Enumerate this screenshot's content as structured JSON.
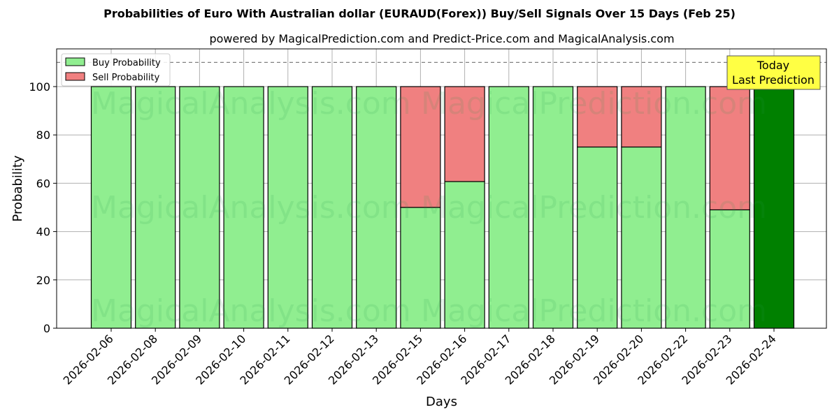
{
  "chart_data": {
    "type": "bar",
    "stacked": true,
    "title": "Probabilities of Euro With Australian dollar (EURAUD(Forex)) Buy/Sell Signals Over 15 Days (Feb 25)",
    "subtitle": "powered by MagicalPrediction.com and Predict-Price.com and MagicalAnalysis.com",
    "xlabel": "Days",
    "ylabel": "Probability",
    "ylim": [
      0,
      115
    ],
    "yticks": [
      0,
      20,
      40,
      60,
      80,
      100
    ],
    "grid": true,
    "reference_line": {
      "y": 110,
      "style": "dashed"
    },
    "categories": [
      "2026-02-06",
      "2026-02-08",
      "2026-02-09",
      "2026-02-10",
      "2026-02-11",
      "2026-02-12",
      "2026-02-13",
      "2026-02-15",
      "2026-02-16",
      "2026-02-17",
      "2026-02-18",
      "2026-02-19",
      "2026-02-20",
      "2026-02-22",
      "2026-02-23",
      "2026-02-24"
    ],
    "series": [
      {
        "name": "Buy Probability",
        "color": "#90ee90",
        "values": [
          100,
          100,
          100,
          100,
          100,
          100,
          100,
          50,
          60.7,
          100,
          100,
          75,
          75,
          100,
          49,
          100
        ]
      },
      {
        "name": "Sell Probability",
        "color": "#f08080",
        "values": [
          0,
          0,
          0,
          0,
          0,
          0,
          0,
          50,
          39.3,
          0,
          0,
          25,
          25,
          0,
          51,
          0
        ]
      }
    ],
    "highlight": {
      "category": "2026-02-24",
      "color": "#008000"
    },
    "legend": {
      "position": "upper left",
      "entries": [
        "Buy Probability",
        "Sell Probability"
      ]
    },
    "annotation": {
      "text_line1": "Today",
      "text_line2": "Last Prediction",
      "bg": "#ffff44"
    },
    "watermarks": [
      "MagicalAnalysis.com",
      "MagicalPrediction.com"
    ]
  }
}
